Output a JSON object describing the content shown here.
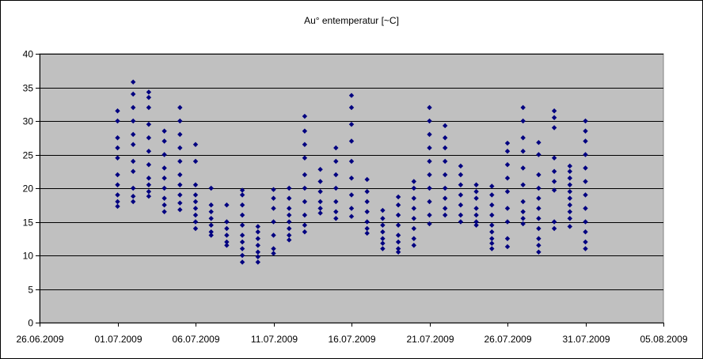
{
  "chart_data": {
    "type": "scatter",
    "title": "Au° entemperatur [~C]",
    "xlabel": "",
    "ylabel": "",
    "xlim": [
      "2009-06-26",
      "2009-08-05"
    ],
    "ylim": [
      0,
      40
    ],
    "ytick_step": 5,
    "xtick_step_days": 5,
    "yticks": [
      "0",
      "5",
      "10",
      "15",
      "20",
      "25",
      "30",
      "35",
      "40"
    ],
    "xticks": [
      "26.06.2009",
      "01.07.2009",
      "06.07.2009",
      "11.07.2009",
      "16.07.2009",
      "21.07.2009",
      "26.07.2009",
      "31.07.2009",
      "05.08.2009"
    ],
    "grid": "horizontal",
    "legend": "none",
    "colors": {
      "plot_bg": "#c0c0c0",
      "marker": "#000080",
      "gridline": "#000000",
      "frame": "#000000"
    },
    "series": [
      {
        "color": "#000080",
        "points": [
          [
            "2009-07-01",
            17.3
          ],
          [
            "2009-07-01",
            18.0
          ],
          [
            "2009-07-01",
            19.0
          ],
          [
            "2009-07-01",
            20.5
          ],
          [
            "2009-07-01",
            22.0
          ],
          [
            "2009-07-01",
            24.5
          ],
          [
            "2009-07-01",
            26.0
          ],
          [
            "2009-07-01",
            27.5
          ],
          [
            "2009-07-01",
            30.0
          ],
          [
            "2009-07-01",
            31.5
          ],
          [
            "2009-07-02",
            18.0
          ],
          [
            "2009-07-02",
            18.8
          ],
          [
            "2009-07-02",
            20.0
          ],
          [
            "2009-07-02",
            22.5
          ],
          [
            "2009-07-02",
            24.0
          ],
          [
            "2009-07-02",
            26.5
          ],
          [
            "2009-07-02",
            28.0
          ],
          [
            "2009-07-02",
            30.0
          ],
          [
            "2009-07-02",
            32.0
          ],
          [
            "2009-07-02",
            34.0
          ],
          [
            "2009-07-02",
            35.8
          ],
          [
            "2009-07-03",
            18.8
          ],
          [
            "2009-07-03",
            19.5
          ],
          [
            "2009-07-03",
            20.5
          ],
          [
            "2009-07-03",
            21.5
          ],
          [
            "2009-07-03",
            23.5
          ],
          [
            "2009-07-03",
            25.5
          ],
          [
            "2009-07-03",
            27.5
          ],
          [
            "2009-07-03",
            29.5
          ],
          [
            "2009-07-03",
            32.0
          ],
          [
            "2009-07-03",
            33.5
          ],
          [
            "2009-07-03",
            34.3
          ],
          [
            "2009-07-04",
            16.5
          ],
          [
            "2009-07-04",
            17.5
          ],
          [
            "2009-07-04",
            18.5
          ],
          [
            "2009-07-04",
            20.0
          ],
          [
            "2009-07-04",
            21.5
          ],
          [
            "2009-07-04",
            23.0
          ],
          [
            "2009-07-04",
            25.0
          ],
          [
            "2009-07-04",
            27.0
          ],
          [
            "2009-07-04",
            28.5
          ],
          [
            "2009-07-05",
            16.8
          ],
          [
            "2009-07-05",
            17.8
          ],
          [
            "2009-07-05",
            19.0
          ],
          [
            "2009-07-05",
            20.5
          ],
          [
            "2009-07-05",
            22.0
          ],
          [
            "2009-07-05",
            24.0
          ],
          [
            "2009-07-05",
            26.0
          ],
          [
            "2009-07-05",
            28.0
          ],
          [
            "2009-07-05",
            30.0
          ],
          [
            "2009-07-05",
            32.0
          ],
          [
            "2009-07-06",
            14.0
          ],
          [
            "2009-07-06",
            15.0
          ],
          [
            "2009-07-06",
            16.0
          ],
          [
            "2009-07-06",
            17.0
          ],
          [
            "2009-07-06",
            18.0
          ],
          [
            "2009-07-06",
            19.0
          ],
          [
            "2009-07-06",
            20.5
          ],
          [
            "2009-07-06",
            24.0
          ],
          [
            "2009-07-06",
            26.5
          ],
          [
            "2009-07-07",
            13.0
          ],
          [
            "2009-07-07",
            13.5
          ],
          [
            "2009-07-07",
            14.5
          ],
          [
            "2009-07-07",
            15.5
          ],
          [
            "2009-07-07",
            16.5
          ],
          [
            "2009-07-07",
            17.5
          ],
          [
            "2009-07-07",
            20.0
          ],
          [
            "2009-07-08",
            11.5
          ],
          [
            "2009-07-08",
            12.0
          ],
          [
            "2009-07-08",
            13.0
          ],
          [
            "2009-07-08",
            14.0
          ],
          [
            "2009-07-08",
            15.0
          ],
          [
            "2009-07-08",
            17.5
          ],
          [
            "2009-07-09",
            9.0
          ],
          [
            "2009-07-09",
            10.0
          ],
          [
            "2009-07-09",
            11.0
          ],
          [
            "2009-07-09",
            12.0
          ],
          [
            "2009-07-09",
            13.0
          ],
          [
            "2009-07-09",
            14.5
          ],
          [
            "2009-07-09",
            16.0
          ],
          [
            "2009-07-09",
            17.5
          ],
          [
            "2009-07-09",
            19.0
          ],
          [
            "2009-07-09",
            19.7
          ],
          [
            "2009-07-10",
            9.0
          ],
          [
            "2009-07-10",
            9.8
          ],
          [
            "2009-07-10",
            10.5
          ],
          [
            "2009-07-10",
            11.5
          ],
          [
            "2009-07-10",
            12.5
          ],
          [
            "2009-07-10",
            13.5
          ],
          [
            "2009-07-10",
            14.3
          ],
          [
            "2009-07-11",
            10.3
          ],
          [
            "2009-07-11",
            11.0
          ],
          [
            "2009-07-11",
            13.0
          ],
          [
            "2009-07-11",
            15.0
          ],
          [
            "2009-07-11",
            17.0
          ],
          [
            "2009-07-11",
            18.5
          ],
          [
            "2009-07-11",
            19.8
          ],
          [
            "2009-07-12",
            12.3
          ],
          [
            "2009-07-12",
            13.0
          ],
          [
            "2009-07-12",
            14.0
          ],
          [
            "2009-07-12",
            15.0
          ],
          [
            "2009-07-12",
            16.0
          ],
          [
            "2009-07-12",
            17.0
          ],
          [
            "2009-07-12",
            18.5
          ],
          [
            "2009-07-12",
            20.0
          ],
          [
            "2009-07-13",
            13.5
          ],
          [
            "2009-07-13",
            14.5
          ],
          [
            "2009-07-13",
            16.0
          ],
          [
            "2009-07-13",
            18.0
          ],
          [
            "2009-07-13",
            20.0
          ],
          [
            "2009-07-13",
            22.0
          ],
          [
            "2009-07-13",
            24.5
          ],
          [
            "2009-07-13",
            26.5
          ],
          [
            "2009-07-13",
            28.5
          ],
          [
            "2009-07-13",
            30.7
          ],
          [
            "2009-07-14",
            16.3
          ],
          [
            "2009-07-14",
            17.0
          ],
          [
            "2009-07-14",
            18.0
          ],
          [
            "2009-07-14",
            19.5
          ],
          [
            "2009-07-14",
            21.0
          ],
          [
            "2009-07-14",
            22.8
          ],
          [
            "2009-07-15",
            15.5
          ],
          [
            "2009-07-15",
            16.5
          ],
          [
            "2009-07-15",
            18.0
          ],
          [
            "2009-07-15",
            20.0
          ],
          [
            "2009-07-15",
            22.0
          ],
          [
            "2009-07-15",
            24.0
          ],
          [
            "2009-07-15",
            26.0
          ],
          [
            "2009-07-16",
            15.8
          ],
          [
            "2009-07-16",
            17.0
          ],
          [
            "2009-07-16",
            19.0
          ],
          [
            "2009-07-16",
            21.5
          ],
          [
            "2009-07-16",
            24.0
          ],
          [
            "2009-07-16",
            27.0
          ],
          [
            "2009-07-16",
            29.5
          ],
          [
            "2009-07-16",
            32.0
          ],
          [
            "2009-07-16",
            33.8
          ],
          [
            "2009-07-17",
            13.3
          ],
          [
            "2009-07-17",
            14.0
          ],
          [
            "2009-07-17",
            15.0
          ],
          [
            "2009-07-17",
            16.5
          ],
          [
            "2009-07-17",
            18.0
          ],
          [
            "2009-07-17",
            19.5
          ],
          [
            "2009-07-17",
            21.3
          ],
          [
            "2009-07-18",
            11.0
          ],
          [
            "2009-07-18",
            11.8
          ],
          [
            "2009-07-18",
            12.5
          ],
          [
            "2009-07-18",
            13.5
          ],
          [
            "2009-07-18",
            14.5
          ],
          [
            "2009-07-18",
            15.5
          ],
          [
            "2009-07-18",
            16.7
          ],
          [
            "2009-07-19",
            10.5
          ],
          [
            "2009-07-19",
            11.0
          ],
          [
            "2009-07-19",
            12.0
          ],
          [
            "2009-07-19",
            13.0
          ],
          [
            "2009-07-19",
            14.5
          ],
          [
            "2009-07-19",
            16.0
          ],
          [
            "2009-07-19",
            17.5
          ],
          [
            "2009-07-19",
            18.7
          ],
          [
            "2009-07-20",
            11.5
          ],
          [
            "2009-07-20",
            12.5
          ],
          [
            "2009-07-20",
            14.0
          ],
          [
            "2009-07-20",
            15.5
          ],
          [
            "2009-07-20",
            17.0
          ],
          [
            "2009-07-20",
            18.5
          ],
          [
            "2009-07-20",
            20.0
          ],
          [
            "2009-07-20",
            21.0
          ],
          [
            "2009-07-21",
            14.7
          ],
          [
            "2009-07-21",
            16.0
          ],
          [
            "2009-07-21",
            18.0
          ],
          [
            "2009-07-21",
            20.0
          ],
          [
            "2009-07-21",
            22.0
          ],
          [
            "2009-07-21",
            24.0
          ],
          [
            "2009-07-21",
            26.0
          ],
          [
            "2009-07-21",
            28.0
          ],
          [
            "2009-07-21",
            30.0
          ],
          [
            "2009-07-21",
            32.0
          ],
          [
            "2009-07-22",
            16.0
          ],
          [
            "2009-07-22",
            17.0
          ],
          [
            "2009-07-22",
            18.5
          ],
          [
            "2009-07-22",
            20.0
          ],
          [
            "2009-07-22",
            22.0
          ],
          [
            "2009-07-22",
            24.0
          ],
          [
            "2009-07-22",
            26.0
          ],
          [
            "2009-07-22",
            27.5
          ],
          [
            "2009-07-22",
            29.3
          ],
          [
            "2009-07-23",
            15.0
          ],
          [
            "2009-07-23",
            16.0
          ],
          [
            "2009-07-23",
            17.5
          ],
          [
            "2009-07-23",
            19.0
          ],
          [
            "2009-07-23",
            20.5
          ],
          [
            "2009-07-23",
            22.0
          ],
          [
            "2009-07-23",
            23.3
          ],
          [
            "2009-07-24",
            14.5
          ],
          [
            "2009-07-24",
            15.0
          ],
          [
            "2009-07-24",
            16.0
          ],
          [
            "2009-07-24",
            17.0
          ],
          [
            "2009-07-24",
            18.5
          ],
          [
            "2009-07-24",
            19.5
          ],
          [
            "2009-07-24",
            20.5
          ],
          [
            "2009-07-25",
            11.0
          ],
          [
            "2009-07-25",
            11.8
          ],
          [
            "2009-07-25",
            12.5
          ],
          [
            "2009-07-25",
            13.5
          ],
          [
            "2009-07-25",
            14.5
          ],
          [
            "2009-07-25",
            16.0
          ],
          [
            "2009-07-25",
            17.5
          ],
          [
            "2009-07-25",
            19.0
          ],
          [
            "2009-07-25",
            20.3
          ],
          [
            "2009-07-26",
            11.3
          ],
          [
            "2009-07-26",
            12.5
          ],
          [
            "2009-07-26",
            15.0
          ],
          [
            "2009-07-26",
            17.0
          ],
          [
            "2009-07-26",
            19.5
          ],
          [
            "2009-07-26",
            21.5
          ],
          [
            "2009-07-26",
            23.5
          ],
          [
            "2009-07-26",
            25.5
          ],
          [
            "2009-07-26",
            26.7
          ],
          [
            "2009-07-27",
            14.7
          ],
          [
            "2009-07-27",
            15.5
          ],
          [
            "2009-07-27",
            16.5
          ],
          [
            "2009-07-27",
            18.0
          ],
          [
            "2009-07-27",
            20.5
          ],
          [
            "2009-07-27",
            23.0
          ],
          [
            "2009-07-27",
            25.5
          ],
          [
            "2009-07-27",
            27.5
          ],
          [
            "2009-07-27",
            30.0
          ],
          [
            "2009-07-27",
            32.0
          ],
          [
            "2009-07-28",
            10.5
          ],
          [
            "2009-07-28",
            11.5
          ],
          [
            "2009-07-28",
            12.5
          ],
          [
            "2009-07-28",
            14.0
          ],
          [
            "2009-07-28",
            15.5
          ],
          [
            "2009-07-28",
            17.0
          ],
          [
            "2009-07-28",
            18.5
          ],
          [
            "2009-07-28",
            20.0
          ],
          [
            "2009-07-28",
            22.0
          ],
          [
            "2009-07-28",
            25.0
          ],
          [
            "2009-07-28",
            26.8
          ],
          [
            "2009-07-29",
            14.0
          ],
          [
            "2009-07-29",
            15.0
          ],
          [
            "2009-07-29",
            19.7
          ],
          [
            "2009-07-29",
            21.0
          ],
          [
            "2009-07-29",
            22.5
          ],
          [
            "2009-07-29",
            24.5
          ],
          [
            "2009-07-29",
            29.0
          ],
          [
            "2009-07-29",
            30.5
          ],
          [
            "2009-07-29",
            31.5
          ],
          [
            "2009-07-30",
            14.3
          ],
          [
            "2009-07-30",
            15.5
          ],
          [
            "2009-07-30",
            16.5
          ],
          [
            "2009-07-30",
            17.5
          ],
          [
            "2009-07-30",
            18.5
          ],
          [
            "2009-07-30",
            19.5
          ],
          [
            "2009-07-30",
            20.5
          ],
          [
            "2009-07-30",
            21.5
          ],
          [
            "2009-07-30",
            22.5
          ],
          [
            "2009-07-30",
            23.3
          ],
          [
            "2009-07-31",
            11.0
          ],
          [
            "2009-07-31",
            12.0
          ],
          [
            "2009-07-31",
            13.5
          ],
          [
            "2009-07-31",
            15.0
          ],
          [
            "2009-07-31",
            17.0
          ],
          [
            "2009-07-31",
            19.0
          ],
          [
            "2009-07-31",
            21.0
          ],
          [
            "2009-07-31",
            23.0
          ],
          [
            "2009-07-31",
            25.0
          ],
          [
            "2009-07-31",
            27.0
          ],
          [
            "2009-07-31",
            28.5
          ],
          [
            "2009-07-31",
            30.0
          ]
        ]
      }
    ]
  }
}
